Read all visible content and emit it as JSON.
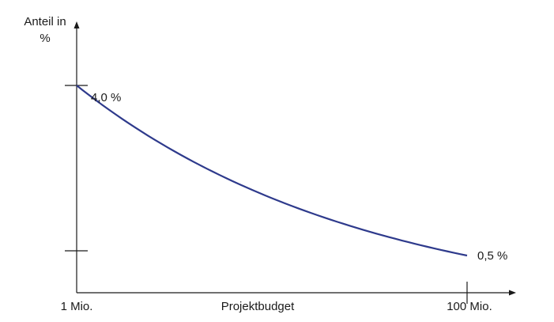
{
  "chart_data": {
    "type": "line",
    "ylabel_line1": "Anteil in",
    "ylabel_line2": "%",
    "xlabel": "Projektbudget",
    "x_tick_labels": [
      "1 Mio.",
      "100 Mio."
    ],
    "x": [
      1,
      100
    ],
    "series": [
      {
        "values": [
          4.0,
          0.5
        ],
        "labels": [
          "4,0 %",
          "0,5 %"
        ]
      }
    ],
    "grid": false,
    "colors": {
      "line": "#2e3a8c",
      "axis": "#1a1a1a"
    }
  }
}
